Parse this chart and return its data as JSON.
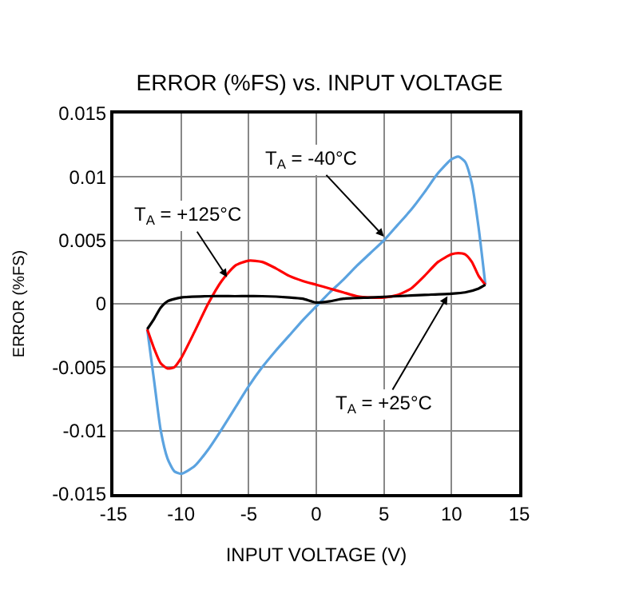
{
  "chart_data": {
    "type": "line",
    "title": "ERROR (%FS) vs. INPUT VOLTAGE",
    "xlabel": "INPUT VOLTAGE (V)",
    "ylabel": "ERROR (%FS)",
    "xlim": [
      -15,
      15
    ],
    "xticks": [
      -15,
      -10,
      -5,
      0,
      5,
      10,
      15
    ],
    "ylim": [
      -0.015,
      0.015
    ],
    "yticks": [
      -0.015,
      -0.01,
      -0.005,
      0,
      0.005,
      0.01,
      0.015
    ],
    "grid": true,
    "marker": "none",
    "line_style": "solid",
    "series": [
      {
        "color": "#5ba3e0",
        "x": [
          -12.5,
          -12,
          -11.5,
          -11,
          -10.5,
          -10,
          -9,
          -8,
          -7,
          -6,
          -5,
          -4,
          -3,
          -2,
          -1,
          0,
          1,
          2,
          3,
          4,
          5,
          6,
          7,
          8,
          9,
          10,
          10.5,
          11,
          11.5,
          12,
          12.5
        ],
        "values": [
          -0.002,
          -0.006,
          -0.01,
          -0.0122,
          -0.0132,
          -0.0134,
          -0.0128,
          -0.0115,
          -0.0099,
          -0.0082,
          -0.0065,
          -0.005,
          -0.0037,
          -0.0025,
          -0.0013,
          -0.0002,
          0.0009,
          0.0019,
          0.003,
          0.004,
          0.005,
          0.0062,
          0.0074,
          0.0088,
          0.0103,
          0.0114,
          0.0116,
          0.0112,
          0.0095,
          0.006,
          0.0015
        ]
      },
      {
        "color": "#ff0000",
        "x": [
          -12.5,
          -12,
          -11.5,
          -11,
          -10.5,
          -10,
          -9,
          -8,
          -7,
          -6,
          -5,
          -4,
          -3,
          -2,
          -1,
          0,
          1,
          2,
          3,
          4,
          5,
          6,
          7,
          8,
          9,
          10,
          10.5,
          11,
          11.5,
          12,
          12.5
        ],
        "values": [
          -0.002,
          -0.0035,
          -0.0047,
          -0.0051,
          -0.005,
          -0.0043,
          -0.0022,
          0.0,
          0.0018,
          0.003,
          0.0034,
          0.0033,
          0.0028,
          0.0022,
          0.0018,
          0.0015,
          0.0012,
          0.0009,
          0.0006,
          0.0005,
          0.0005,
          0.0007,
          0.0012,
          0.0022,
          0.0033,
          0.0039,
          0.004,
          0.0039,
          0.0033,
          0.0022,
          0.0015
        ]
      },
      {
        "color": "#000000",
        "x": [
          -12.5,
          -12,
          -11.5,
          -11,
          -10,
          -8,
          -6,
          -4,
          -2,
          -1,
          0,
          1,
          2,
          4,
          6,
          8,
          10,
          11,
          12,
          12.5
        ],
        "values": [
          -0.002,
          -0.0012,
          -0.0003,
          0.0002,
          0.0005,
          0.0006,
          0.0006,
          0.0006,
          0.0005,
          0.0004,
          0.0001,
          0.0002,
          0.0004,
          0.0005,
          0.0006,
          0.0007,
          0.0008,
          0.0009,
          0.0012,
          0.0015
        ]
      }
    ],
    "annotations": [
      {
        "text": "T$_{A}$ = -40°C",
        "x": 5,
        "y": 0.0053
      },
      {
        "text": "T$_{A}$ = +125°C",
        "x": -6.6,
        "y": 0.0021
      },
      {
        "text": "T$_{A}$ = +25°C",
        "x": 9.7,
        "y": 0.0006
      }
    ]
  }
}
